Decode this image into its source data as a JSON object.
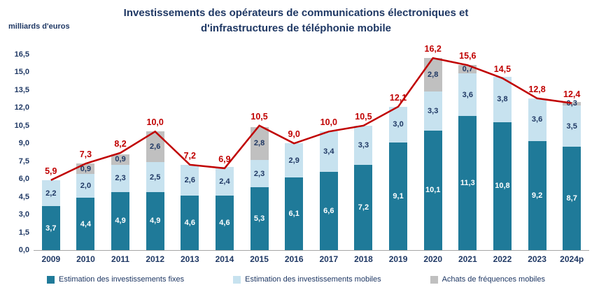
{
  "title": {
    "line1": "Investissements des opérateurs de communications électroniques et",
    "line2": "d'infrastructures de téléphonie mobile"
  },
  "ylabel": "milliards d'euros",
  "colors": {
    "fixes": "#1F7A99",
    "mobiles": "#C7E2EF",
    "frequences": "#C0C0C0",
    "total_line": "#C00000",
    "text_navy": "#1F3864"
  },
  "chart_data": {
    "type": "bar",
    "stacked": true,
    "grid": false,
    "legend_position": "bottom",
    "ylim": [
      0,
      16.5
    ],
    "ytick_values": [
      0,
      1.5,
      3,
      4.5,
      6,
      7.5,
      9,
      10.5,
      12,
      13.5,
      15,
      16.5
    ],
    "categories": [
      "2009",
      "2010",
      "2011",
      "2012",
      "2013",
      "2014",
      "2015",
      "2016",
      "2017",
      "2018",
      "2019",
      "2020",
      "2021",
      "2022",
      "2023",
      "2024p"
    ],
    "series": [
      {
        "key": "fixes",
        "name": "Estimation des investissements fixes",
        "color": "#1F7A99",
        "label_color": "#FFFFFF",
        "values": [
          3.7,
          4.4,
          4.9,
          4.9,
          4.6,
          4.6,
          5.3,
          6.1,
          6.6,
          7.2,
          9.1,
          10.1,
          11.3,
          10.8,
          9.2,
          8.7
        ]
      },
      {
        "key": "mobiles",
        "name": "Estimation des investissements mobiles",
        "color": "#C7E2EF",
        "label_color": "#1F3864",
        "values": [
          2.2,
          2.0,
          2.3,
          2.5,
          2.6,
          2.4,
          2.3,
          2.9,
          3.4,
          3.3,
          3.0,
          3.3,
          3.6,
          3.8,
          3.6,
          3.5
        ]
      },
      {
        "key": "frequences",
        "name": "Achats de fréquences mobiles",
        "color": "#C0C0C0",
        "label_color": "#1F3864",
        "values": [
          0,
          0.9,
          0.9,
          2.6,
          0,
          0,
          2.8,
          0,
          0,
          0,
          0,
          2.8,
          0.7,
          0,
          0,
          0.3
        ]
      }
    ],
    "line": {
      "name": "Total des investissements",
      "color": "#C00000",
      "values": [
        5.9,
        7.3,
        8.2,
        10.0,
        7.2,
        6.9,
        10.5,
        9.0,
        10.0,
        10.5,
        12.1,
        16.2,
        15.6,
        14.5,
        12.8,
        12.4
      ]
    }
  }
}
